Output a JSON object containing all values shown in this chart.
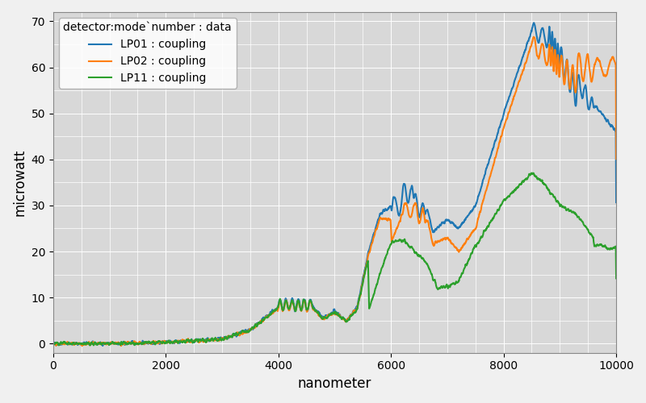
{
  "title": "",
  "xlabel": "nanometer",
  "ylabel": "microwatt",
  "xlim": [
    0,
    10000
  ],
  "ylim": [
    -2,
    72
  ],
  "legend_title": "detector:mode`number : data",
  "legend_labels": [
    "LP01 : coupling",
    "LP02 : coupling",
    "LP11 : coupling"
  ],
  "colors": [
    "#1f77b4",
    "#ff7f0e",
    "#2ca02c"
  ],
  "background_color": "#d8d8d8",
  "grid_color": "#ffffff",
  "linewidth": 1.5,
  "yticks": [
    0,
    10,
    20,
    30,
    40,
    50,
    60,
    70
  ],
  "xticks": [
    0,
    2000,
    4000,
    6000,
    8000,
    10000
  ]
}
